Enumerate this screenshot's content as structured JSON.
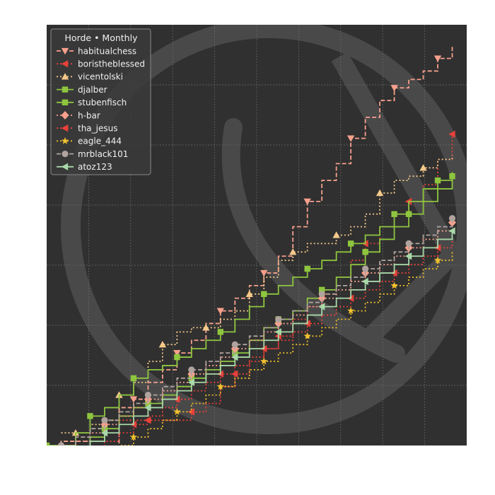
{
  "chart_data": {
    "type": "line",
    "title": "",
    "xlabel": "",
    "ylabel": "",
    "x_tick_labels_visible": false,
    "y_tick_labels_visible": false,
    "xlim": [
      0,
      29
    ],
    "ylim": [
      0,
      100
    ],
    "grid": true,
    "background_color": "#303030",
    "watermark": "large pale logo behind the plot",
    "step": true,
    "legend": {
      "title": "Horde • Monthly",
      "placement": "top-left"
    },
    "series": [
      {
        "name": "habitualchess",
        "color": "#f7a08c",
        "dash": "dashed",
        "marker": "triangle-down",
        "points": [
          [
            0,
            -1
          ],
          [
            1,
            1
          ],
          [
            2,
            1
          ],
          [
            3,
            -1
          ],
          [
            4,
            -0.5
          ],
          [
            5,
            9
          ],
          [
            6,
            11
          ],
          [
            7,
            15
          ],
          [
            8,
            18
          ],
          [
            9,
            22
          ],
          [
            10,
            25
          ],
          [
            11,
            29
          ],
          [
            12,
            32
          ],
          [
            13,
            35
          ],
          [
            14,
            38
          ],
          [
            15,
            41
          ],
          [
            16,
            45
          ],
          [
            17,
            52
          ],
          [
            18,
            58
          ],
          [
            19,
            63
          ],
          [
            20,
            67
          ],
          [
            21,
            73
          ],
          [
            22,
            78
          ],
          [
            23,
            82
          ],
          [
            24,
            85
          ],
          [
            25,
            87
          ],
          [
            26,
            89
          ],
          [
            27,
            92
          ],
          [
            28,
            95
          ]
        ]
      },
      {
        "name": "boristheblessed",
        "color": "#e8413a",
        "dash": "dotted",
        "marker": "triangle-left",
        "points": [
          [
            5,
            6
          ],
          [
            6,
            6
          ],
          [
            7,
            6
          ],
          [
            8,
            6
          ],
          [
            9,
            6
          ],
          [
            10,
            8
          ],
          [
            11,
            10
          ],
          [
            12,
            14
          ],
          [
            13,
            17
          ],
          [
            14,
            20
          ],
          [
            15,
            23
          ],
          [
            16,
            26
          ],
          [
            17,
            30
          ],
          [
            18,
            33
          ],
          [
            19,
            36
          ],
          [
            20,
            40
          ],
          [
            21,
            44
          ],
          [
            22,
            48
          ],
          [
            23,
            52
          ],
          [
            24,
            55
          ],
          [
            25,
            58
          ],
          [
            26,
            62
          ],
          [
            27,
            68
          ],
          [
            28,
            74
          ]
        ]
      },
      {
        "name": "vicentolski",
        "color": "#f5c98a",
        "dash": "dotted",
        "marker": "triangle-up",
        "points": [
          [
            1,
            3
          ],
          [
            2,
            3
          ],
          [
            3,
            5
          ],
          [
            4,
            6
          ],
          [
            5,
            12
          ],
          [
            6,
            15
          ],
          [
            7,
            20
          ],
          [
            8,
            24
          ],
          [
            9,
            27
          ],
          [
            10,
            28
          ],
          [
            11,
            28
          ],
          [
            12,
            30
          ],
          [
            13,
            32
          ],
          [
            14,
            36
          ],
          [
            15,
            40
          ],
          [
            16,
            44
          ],
          [
            17,
            46
          ],
          [
            18,
            48
          ],
          [
            19,
            48
          ],
          [
            20,
            50
          ],
          [
            21,
            52
          ],
          [
            22,
            55
          ],
          [
            23,
            60
          ],
          [
            24,
            63
          ],
          [
            25,
            64
          ],
          [
            26,
            66
          ],
          [
            27,
            68
          ],
          [
            28,
            69
          ]
        ]
      },
      {
        "name": "djalber",
        "color": "#8ec63f",
        "dash": "solid",
        "marker": "square",
        "points": [
          [
            0,
            0
          ],
          [
            1,
            0
          ],
          [
            2,
            3
          ],
          [
            3,
            7
          ],
          [
            4,
            9
          ],
          [
            5,
            12
          ],
          [
            6,
            16
          ],
          [
            7,
            18
          ],
          [
            8,
            19
          ],
          [
            9,
            21
          ],
          [
            10,
            23
          ],
          [
            11,
            25
          ],
          [
            12,
            27
          ],
          [
            13,
            30
          ],
          [
            14,
            33
          ],
          [
            15,
            36
          ],
          [
            16,
            38
          ],
          [
            17,
            40
          ],
          [
            18,
            42
          ],
          [
            19,
            44
          ],
          [
            20,
            46
          ],
          [
            21,
            48
          ],
          [
            22,
            50
          ],
          [
            23,
            52
          ],
          [
            24,
            55
          ],
          [
            25,
            58
          ],
          [
            26,
            61
          ],
          [
            27,
            63
          ],
          [
            28,
            65
          ]
        ]
      },
      {
        "name": "stubenfisch",
        "color": "#8ec63f",
        "dash": "solid",
        "marker": "square",
        "points": [
          [
            2,
            -1
          ],
          [
            3,
            2
          ],
          [
            4,
            4
          ],
          [
            5,
            7
          ],
          [
            6,
            9
          ],
          [
            7,
            10
          ],
          [
            8,
            12
          ],
          [
            9,
            14
          ],
          [
            10,
            16
          ],
          [
            11,
            18
          ],
          [
            12,
            20
          ],
          [
            13,
            22
          ],
          [
            14,
            25
          ],
          [
            15,
            28
          ],
          [
            16,
            30
          ],
          [
            17,
            32
          ],
          [
            18,
            35
          ],
          [
            19,
            37
          ],
          [
            20,
            40
          ],
          [
            21,
            43
          ],
          [
            22,
            46
          ],
          [
            23,
            49
          ],
          [
            24,
            52
          ],
          [
            25,
            55
          ],
          [
            26,
            58
          ],
          [
            27,
            61
          ],
          [
            28,
            64
          ]
        ]
      },
      {
        "name": "h-bar",
        "color": "#f7a08c",
        "dash": "dotted",
        "marker": "diamond",
        "points": [
          [
            0,
            -3
          ],
          [
            1,
            -1
          ],
          [
            2,
            1
          ],
          [
            3,
            3
          ],
          [
            4,
            5
          ],
          [
            5,
            7
          ],
          [
            6,
            9
          ],
          [
            7,
            11
          ],
          [
            8,
            13
          ],
          [
            9,
            15
          ],
          [
            10,
            17
          ],
          [
            11,
            19
          ],
          [
            12,
            21
          ],
          [
            13,
            23
          ],
          [
            14,
            25
          ],
          [
            15,
            27
          ],
          [
            16,
            29
          ],
          [
            17,
            31
          ],
          [
            18,
            33
          ],
          [
            19,
            35
          ],
          [
            20,
            37
          ],
          [
            21,
            39
          ],
          [
            22,
            41
          ],
          [
            23,
            43
          ],
          [
            24,
            45
          ],
          [
            25,
            47
          ],
          [
            26,
            49
          ],
          [
            27,
            51
          ],
          [
            28,
            53
          ]
        ]
      },
      {
        "name": "tha_jesus",
        "color": "#e8413a",
        "dash": "dotted",
        "marker": "triangle-left",
        "points": [
          [
            3,
            -1
          ],
          [
            4,
            1
          ],
          [
            5,
            3
          ],
          [
            6,
            5
          ],
          [
            7,
            7
          ],
          [
            8,
            9
          ],
          [
            9,
            11
          ],
          [
            10,
            13
          ],
          [
            11,
            15
          ],
          [
            12,
            17
          ],
          [
            13,
            19
          ],
          [
            14,
            21
          ],
          [
            15,
            23
          ],
          [
            16,
            25
          ],
          [
            17,
            27
          ],
          [
            18,
            29
          ],
          [
            19,
            31
          ],
          [
            20,
            33
          ],
          [
            21,
            35
          ],
          [
            22,
            37
          ],
          [
            23,
            39
          ],
          [
            24,
            41
          ],
          [
            25,
            43
          ],
          [
            26,
            45
          ],
          [
            27,
            47
          ],
          [
            28,
            49
          ]
        ]
      },
      {
        "name": "eagle_444",
        "color": "#f2c12e",
        "dash": "dotted",
        "marker": "star",
        "points": [
          [
            4,
            -2
          ],
          [
            5,
            0
          ],
          [
            6,
            2
          ],
          [
            7,
            4
          ],
          [
            8,
            6
          ],
          [
            9,
            8
          ],
          [
            10,
            10
          ],
          [
            11,
            12
          ],
          [
            12,
            14
          ],
          [
            13,
            16
          ],
          [
            14,
            18
          ],
          [
            15,
            20
          ],
          [
            16,
            22
          ],
          [
            17,
            24
          ],
          [
            18,
            26
          ],
          [
            19,
            28
          ],
          [
            20,
            30
          ],
          [
            21,
            32
          ],
          [
            22,
            34
          ],
          [
            23,
            36
          ],
          [
            24,
            38
          ],
          [
            25,
            40
          ],
          [
            26,
            42
          ],
          [
            27,
            44
          ],
          [
            28,
            46
          ]
        ]
      },
      {
        "name": "mrblack101",
        "color": "#b0a39e",
        "dash": "dashed",
        "marker": "circle",
        "points": [
          [
            0,
            -2
          ],
          [
            1,
            0
          ],
          [
            2,
            2
          ],
          [
            3,
            4
          ],
          [
            4,
            6
          ],
          [
            5,
            8
          ],
          [
            6,
            10
          ],
          [
            7,
            12
          ],
          [
            8,
            14
          ],
          [
            9,
            16
          ],
          [
            10,
            18
          ],
          [
            11,
            20
          ],
          [
            12,
            22
          ],
          [
            13,
            24
          ],
          [
            14,
            26
          ],
          [
            15,
            28
          ],
          [
            16,
            30
          ],
          [
            17,
            32
          ],
          [
            18,
            34
          ],
          [
            19,
            36
          ],
          [
            20,
            38
          ],
          [
            21,
            40
          ],
          [
            22,
            42
          ],
          [
            23,
            44
          ],
          [
            24,
            46
          ],
          [
            25,
            48
          ],
          [
            26,
            50
          ],
          [
            27,
            52
          ],
          [
            28,
            54
          ]
        ]
      },
      {
        "name": "atoz123",
        "color": "#a8d8a8",
        "dash": "solid",
        "marker": "triangle-left",
        "points": [
          [
            1,
            -3
          ],
          [
            2,
            -1
          ],
          [
            3,
            1
          ],
          [
            4,
            3
          ],
          [
            5,
            5
          ],
          [
            6,
            7
          ],
          [
            7,
            9
          ],
          [
            8,
            11
          ],
          [
            9,
            13
          ],
          [
            10,
            15
          ],
          [
            11,
            17
          ],
          [
            12,
            19
          ],
          [
            13,
            21
          ],
          [
            14,
            23
          ],
          [
            15,
            25
          ],
          [
            16,
            27
          ],
          [
            17,
            29
          ],
          [
            18,
            31
          ],
          [
            19,
            33
          ],
          [
            20,
            35
          ],
          [
            21,
            37
          ],
          [
            22,
            39
          ],
          [
            23,
            41
          ],
          [
            24,
            43
          ],
          [
            25,
            45
          ],
          [
            26,
            47
          ],
          [
            27,
            49
          ],
          [
            28,
            51
          ]
        ]
      }
    ]
  }
}
